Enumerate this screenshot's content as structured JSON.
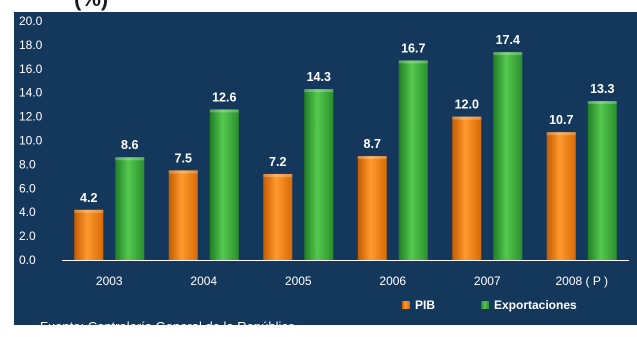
{
  "title_fragment": "(%)",
  "source_note": "Fuente:  Contraloría General de la República.",
  "chart_data": {
    "type": "bar",
    "title": "",
    "categories": [
      "2003",
      "2004",
      "2005",
      "2006",
      "2007",
      "2008 ( P )"
    ],
    "series": [
      {
        "name": "PIB",
        "values": [
          4.2,
          7.5,
          7.2,
          8.7,
          12.0,
          10.7
        ],
        "color": "#f07c10",
        "labels": [
          "4.2",
          "7.5",
          "7.2",
          "8.7",
          "12.0",
          "10.7"
        ]
      },
      {
        "name": "Exportaciones",
        "values": [
          8.6,
          12.6,
          14.3,
          16.7,
          17.4,
          13.3
        ],
        "color": "#3aa63a",
        "labels": [
          "8.6",
          "12.6",
          "14.3",
          "16.7",
          "17.4",
          "13.3"
        ]
      }
    ],
    "ylim": [
      0,
      20
    ],
    "yticks": [
      0,
      2,
      4,
      6,
      8,
      10,
      12,
      14,
      16,
      18,
      20
    ],
    "ytick_labels": [
      "0.0",
      "2.0",
      "4.0",
      "6.0",
      "8.0",
      "10.0",
      "12.0",
      "14.0",
      "16.0",
      "18.0",
      "20.0"
    ],
    "grid": false,
    "legend_position": "bottom-right",
    "background_color": "#14385c"
  }
}
